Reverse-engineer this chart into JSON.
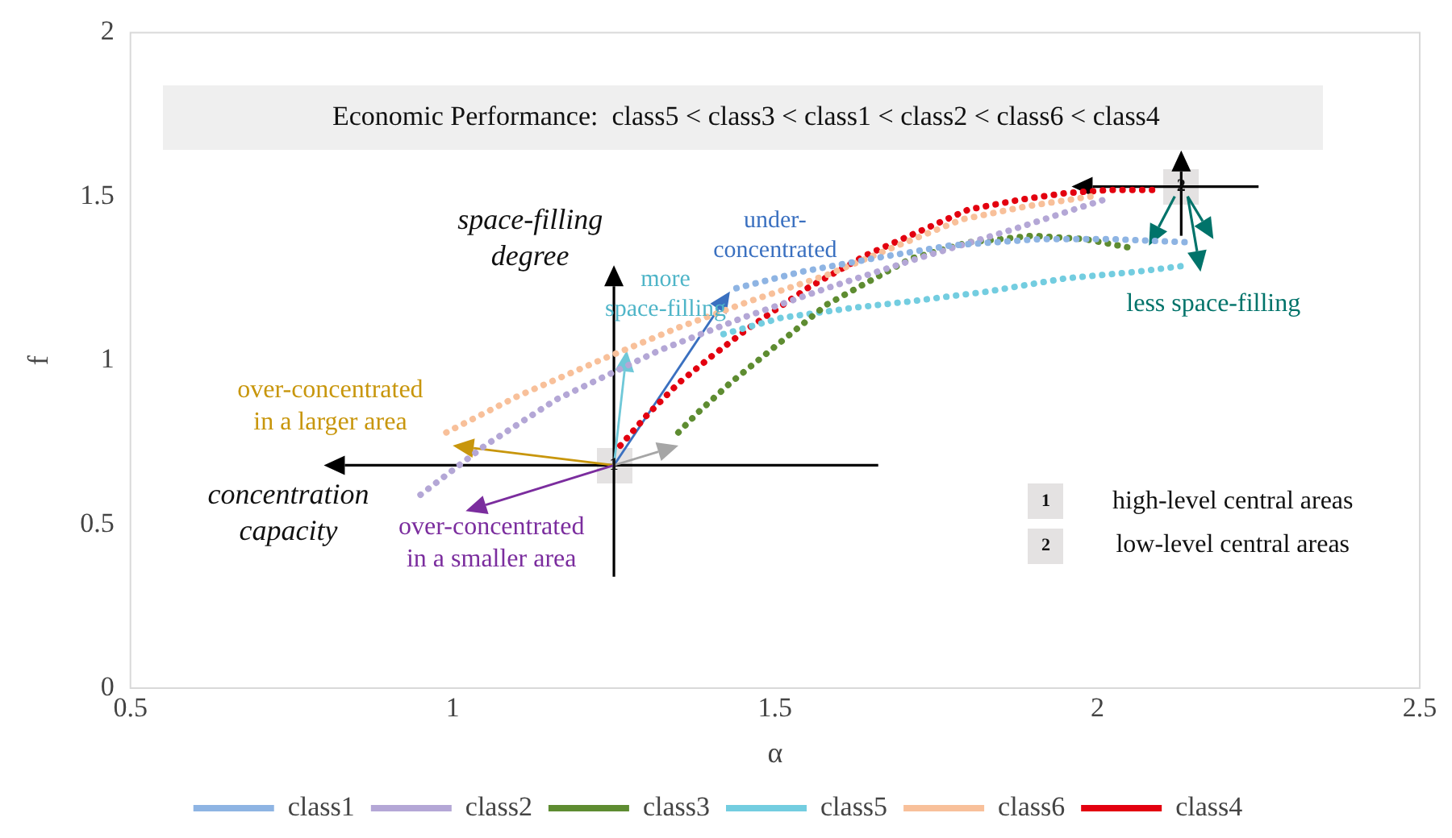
{
  "chart_data": {
    "type": "line",
    "xlabel": "α",
    "ylabel": "f",
    "xlim": [
      0.5,
      2.5
    ],
    "ylim": [
      0,
      2
    ],
    "xticks": [
      0.5,
      1,
      1.5,
      2,
      2.5
    ],
    "yticks": [
      0,
      0.5,
      1,
      1.5,
      2
    ],
    "legend": "bottom",
    "line_style": "dotted",
    "series": [
      {
        "name": "class1",
        "color": "#8eb4e3",
        "x": [
          1.44,
          1.54,
          1.65,
          1.77,
          1.91,
          2.02,
          2.14
        ],
        "values": [
          1.22,
          1.27,
          1.31,
          1.35,
          1.37,
          1.37,
          1.36
        ]
      },
      {
        "name": "class2",
        "color": "#b4a7d6",
        "x": [
          0.95,
          1.05,
          1.16,
          1.32,
          1.45,
          1.58,
          1.72,
          1.87,
          2.01
        ],
        "values": [
          0.59,
          0.74,
          0.88,
          1.03,
          1.13,
          1.22,
          1.31,
          1.4,
          1.49
        ]
      },
      {
        "name": "class3",
        "color": "#5e8c31",
        "x": [
          1.35,
          1.38,
          1.43,
          1.48,
          1.58,
          1.71,
          1.8,
          1.9,
          1.98,
          2.06
        ],
        "values": [
          0.78,
          0.84,
          0.93,
          1.01,
          1.17,
          1.31,
          1.36,
          1.38,
          1.37,
          1.34
        ]
      },
      {
        "name": "class5",
        "color": "#73cde0",
        "x": [
          1.42,
          1.51,
          1.62,
          1.71,
          1.83,
          1.95,
          2.06,
          2.14
        ],
        "values": [
          1.08,
          1.13,
          1.16,
          1.18,
          1.21,
          1.25,
          1.27,
          1.29
        ]
      },
      {
        "name": "class6",
        "color": "#f8c09a",
        "x": [
          0.99,
          1.1,
          1.24,
          1.35,
          1.46,
          1.58,
          1.69,
          1.79,
          1.89,
          1.99
        ],
        "values": [
          0.78,
          0.89,
          1.01,
          1.1,
          1.18,
          1.26,
          1.35,
          1.43,
          1.47,
          1.5
        ]
      },
      {
        "name": "class4",
        "color": "#e3000f",
        "x": [
          1.26,
          1.3,
          1.35,
          1.4,
          1.46,
          1.55,
          1.64,
          1.72,
          1.8,
          1.88,
          1.95,
          2.02,
          2.09
        ],
        "values": [
          0.74,
          0.83,
          0.93,
          1.01,
          1.1,
          1.22,
          1.32,
          1.39,
          1.46,
          1.49,
          1.51,
          1.52,
          1.52
        ]
      }
    ],
    "annotations": [
      "Economic Performance:  class5 < class3 < class1 < class2 < class6 < class4",
      "space-filling\ndegree",
      "concentration\ncapacity",
      "over-concentrated\nin a larger area",
      "over-concentrated\nin a smaller area",
      "more\nspace-filling",
      "under-\nconcentrated",
      "less space-filling",
      {
        "text": "1",
        "x": 1.25,
        "y": 0.68
      },
      {
        "text": "2",
        "x": 2.13,
        "y": 1.53
      },
      "1",
      "high-level central areas",
      "2",
      "low-level central areas"
    ]
  }
}
